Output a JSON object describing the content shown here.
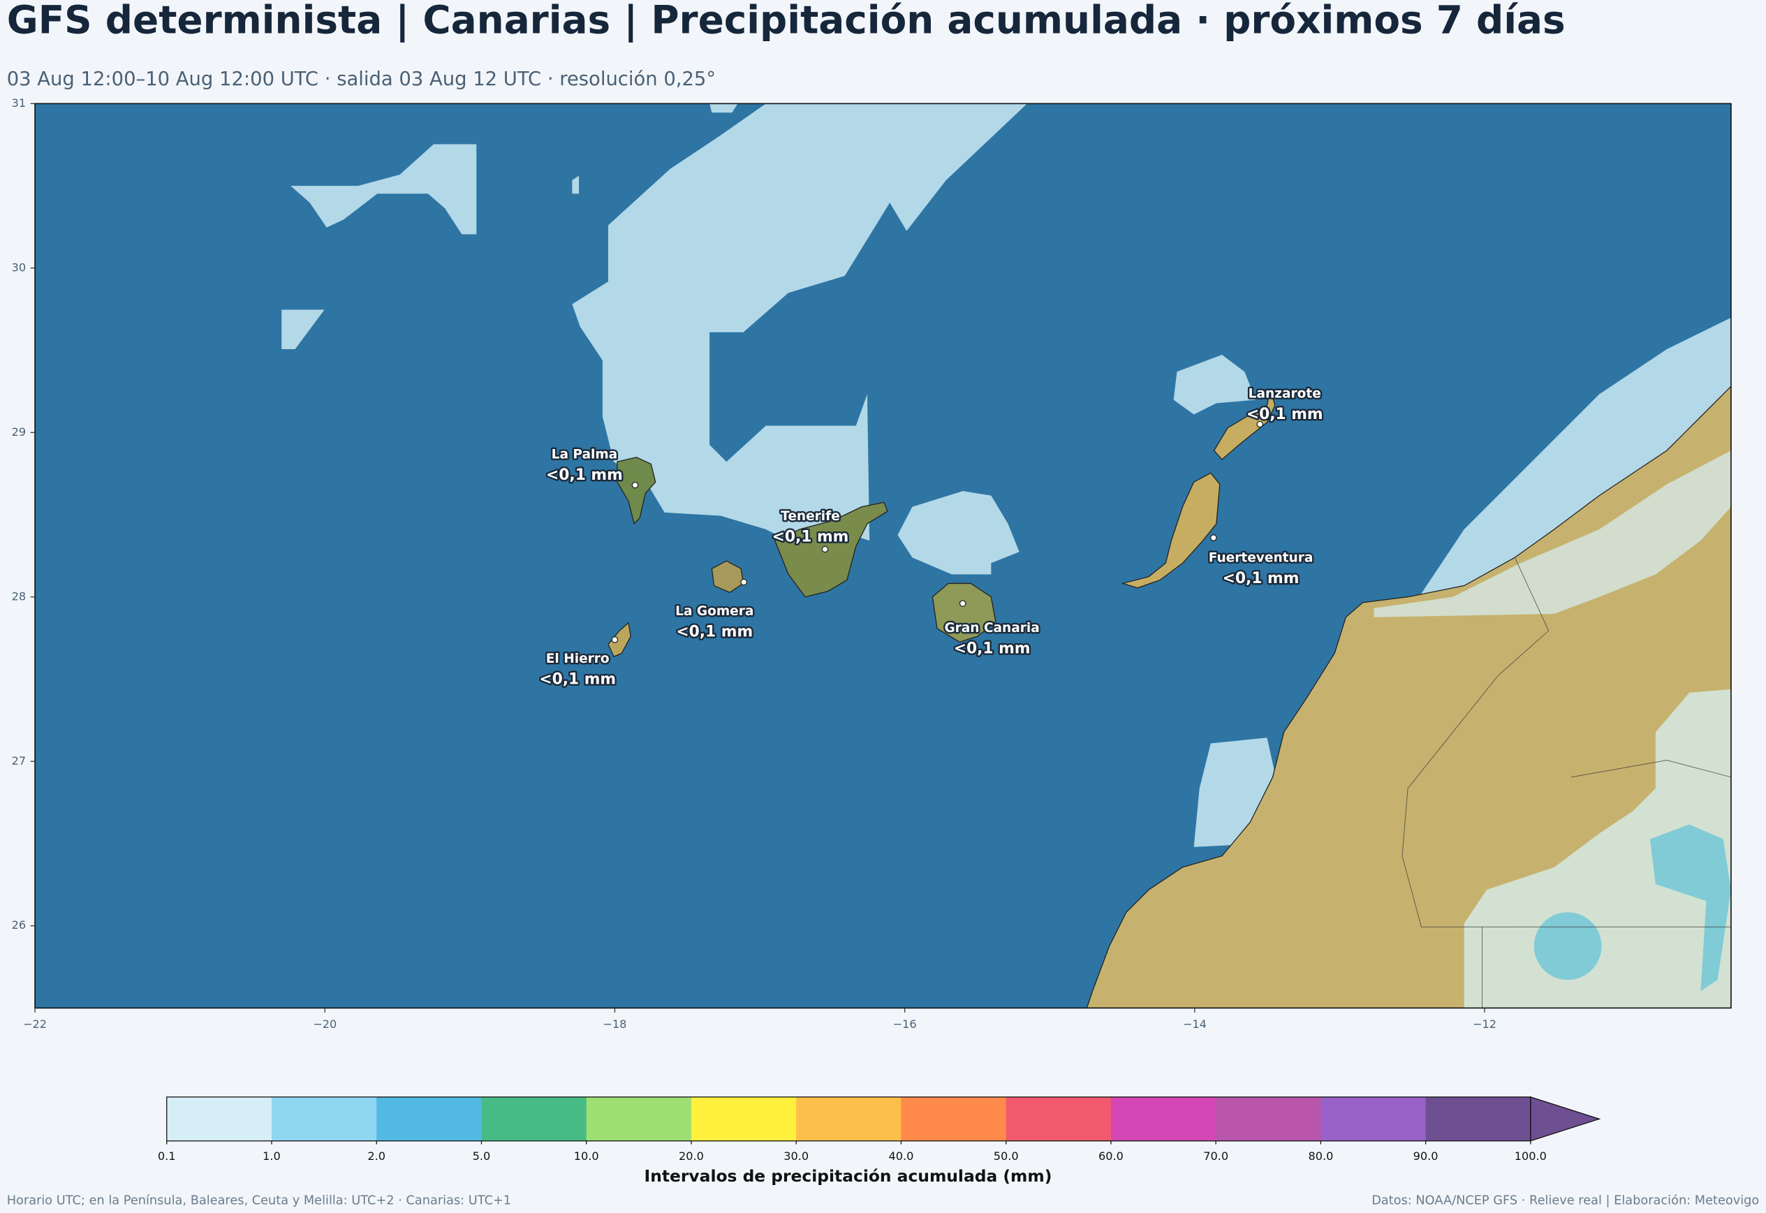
{
  "header": {
    "title": "GFS determinista | Canarias | Precipitación acumulada · próximos 7 días",
    "subtitle": "03 Aug 12:00–10 Aug 12:00 UTC · salida 03 Aug 12 UTC · resolución 0,25°"
  },
  "map": {
    "xlim": [
      -22,
      -10.3
    ],
    "ylim": [
      25.5,
      31
    ],
    "xticks": [
      {
        "value": -22,
        "label": "−22"
      },
      {
        "value": -20,
        "label": "−20"
      },
      {
        "value": -18,
        "label": "−18"
      },
      {
        "value": -16,
        "label": "−16"
      },
      {
        "value": -14,
        "label": "−14"
      },
      {
        "value": -12,
        "label": "−12"
      }
    ],
    "yticks": [
      26,
      27,
      28,
      29,
      30,
      31
    ],
    "stations": [
      {
        "name": "La Palma",
        "lon": -17.86,
        "lat": 28.68,
        "value_label": "<0,1 mm"
      },
      {
        "name": "Tenerife",
        "lon": -16.55,
        "lat": 28.29,
        "value_label": "<0,1 mm"
      },
      {
        "name": "La Gomera",
        "lon": -17.11,
        "lat": 28.09,
        "value_label": "<0,1 mm"
      },
      {
        "name": "El Hierro",
        "lon": -18.0,
        "lat": 27.74,
        "value_label": "<0,1 mm"
      },
      {
        "name": "Gran Canaria",
        "lon": -15.6,
        "lat": 27.96,
        "value_label": "<0,1 mm"
      },
      {
        "name": "Lanzarote",
        "lon": -13.55,
        "lat": 29.05,
        "value_label": "<0,1 mm"
      },
      {
        "name": "Fuerteventura",
        "lon": -13.87,
        "lat": 28.36,
        "value_label": "<0,1 mm"
      }
    ]
  },
  "colorbar": {
    "title": "Intervalos de precipitación acumulada (mm)",
    "levels": [
      0.1,
      {
        "value": 1,
        "label": "1.0"
      },
      {
        "value": 2,
        "label": "2.0"
      },
      {
        "value": 5,
        "label": "5.0"
      },
      {
        "value": 10,
        "label": "10.0"
      },
      {
        "value": 20,
        "label": "20.0"
      },
      {
        "value": 30,
        "label": "30.0"
      },
      {
        "value": 40,
        "label": "40.0"
      },
      {
        "value": 50,
        "label": "50.0"
      },
      {
        "value": 60,
        "label": "60.0"
      },
      {
        "value": 70,
        "label": "70.0"
      },
      {
        "value": 80,
        "label": "80.0"
      },
      {
        "value": 90,
        "label": "90.0"
      },
      {
        "value": 100,
        "label": "100.0"
      }
    ],
    "colors": [
      "#d6eef6",
      "#8fd6f0",
      "#52b9e2",
      "#46bb86",
      "#9ddf72",
      "#fef03c",
      "#ffbf4b",
      "#ff8a4c",
      "#f05a6c",
      "#d447b4",
      "#b955ab",
      "#9862c8",
      "#6e4f91"
    ],
    "extend_color": "#6e4f91"
  },
  "footer": {
    "left": "Horario UTC; en la Península, Baleares, Ceuta y Melilla: UTC+2 · Canarias: UTC+1",
    "right": "Datos: NOAA/NCEP GFS · Relieve real | Elaboración: Meteovigo"
  }
}
